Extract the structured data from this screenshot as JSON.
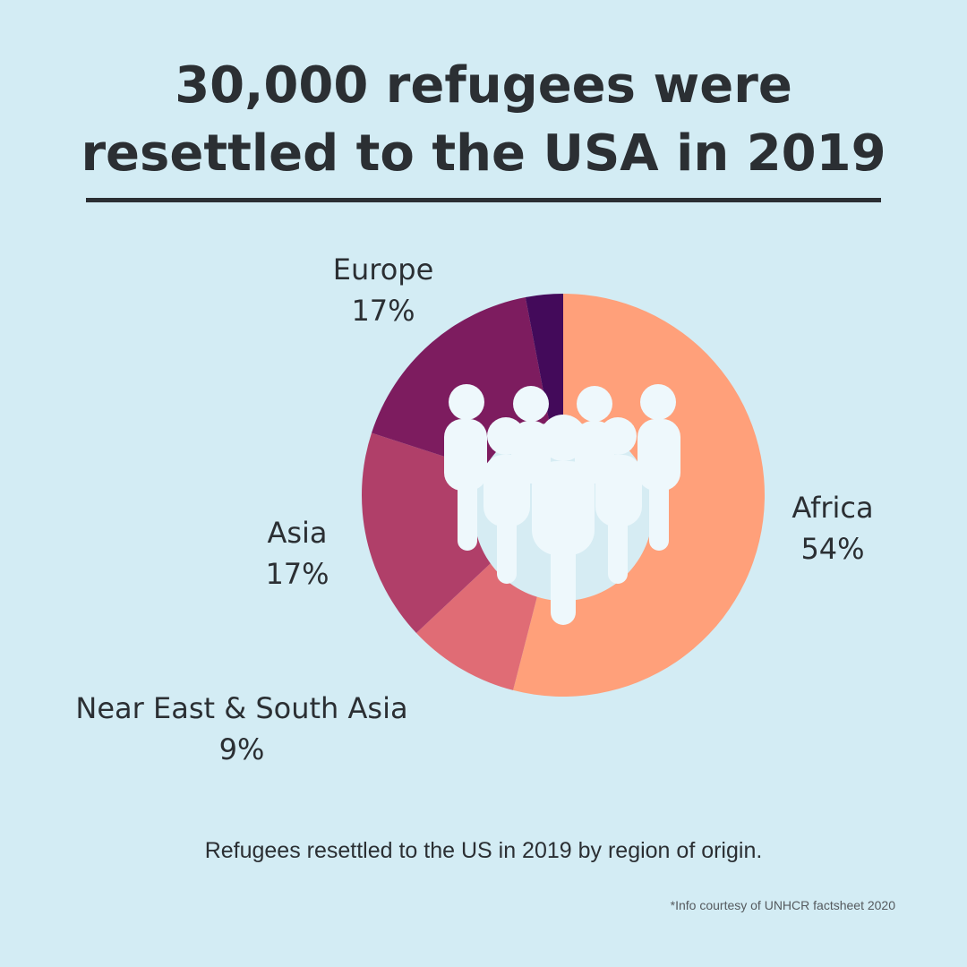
{
  "title": {
    "line1": "30,000 refugees were",
    "line2": "resettled to the USA in 2019"
  },
  "chart_data": {
    "type": "pie",
    "title": "30,000 refugees were resettled to the USA in 2019",
    "slices": [
      {
        "label": "Africa",
        "value": 54,
        "value_label": "54%",
        "color": "#ffa07a"
      },
      {
        "label": "Near East & South Asia",
        "value": 9,
        "value_label": "9%",
        "color": "#e06c75"
      },
      {
        "label": "Asia",
        "value": 17,
        "value_label": "17%",
        "color": "#b03f69"
      },
      {
        "label": "Europe",
        "value": 17,
        "value_label": "17%",
        "color": "#7d1c5f"
      },
      {
        "label": "",
        "value": 3,
        "value_label": "",
        "color": "#430a5a"
      }
    ]
  },
  "caption": "Refugees resettled to the US in 2019 by region of origin.",
  "source_note": "*Info courtesy of UNHCR factsheet 2020",
  "icon": "people-group-icon",
  "colors": {
    "background": "#d3ecf4",
    "inner_circle": "#d6ecf3",
    "figure": "#eef8fc",
    "text": "#2b2f33"
  }
}
